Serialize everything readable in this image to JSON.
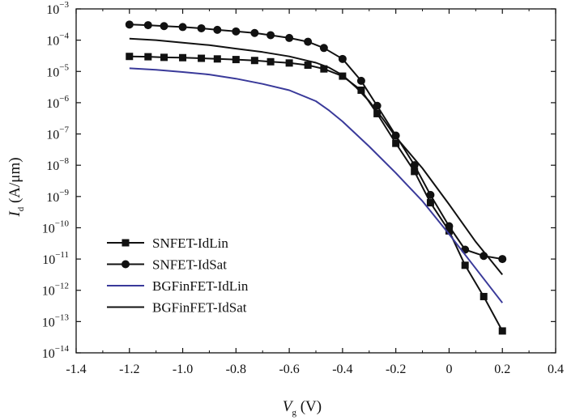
{
  "chart_data": {
    "type": "line",
    "title": "",
    "xlabel": {
      "main": "V",
      "sub": "g",
      "unit": " (V)"
    },
    "ylabel": {
      "main": "I",
      "sub": "d",
      "unit": " (A/μm)"
    },
    "xlim": [
      -1.4,
      0.4
    ],
    "ylim_log10": [
      -14,
      -3
    ],
    "yscale": "log",
    "x_ticks": [
      "-1.4",
      "-1.2",
      "-1.0",
      "-0.8",
      "-0.6",
      "-0.4",
      "-0.2",
      "0",
      "0.2",
      "0.4"
    ],
    "y_ticks": [
      {
        "base": "10",
        "exp": "-3"
      },
      {
        "base": "10",
        "exp": "-4"
      },
      {
        "base": "10",
        "exp": "-5"
      },
      {
        "base": "10",
        "exp": "-6"
      },
      {
        "base": "10",
        "exp": "-7"
      },
      {
        "base": "10",
        "exp": "-8"
      },
      {
        "base": "10",
        "exp": "-9"
      },
      {
        "base": "10",
        "exp": "-10"
      },
      {
        "base": "10",
        "exp": "-11"
      },
      {
        "base": "10",
        "exp": "-12"
      },
      {
        "base": "10",
        "exp": "-13"
      },
      {
        "base": "10",
        "exp": "-14"
      }
    ],
    "legend_position": "bottom-left",
    "grid": false,
    "series": [
      {
        "name": "SNFET-IdLin",
        "color": "#111111",
        "marker": "square",
        "x": [
          -1.2,
          -1.13,
          -1.07,
          -1.0,
          -0.93,
          -0.87,
          -0.8,
          -0.73,
          -0.67,
          -0.6,
          -0.53,
          -0.47,
          -0.4,
          -0.33,
          -0.27,
          -0.2,
          -0.13,
          -0.07,
          0.0,
          0.06,
          0.13,
          0.2
        ],
        "y_log10": [
          -4.52,
          -4.53,
          -4.55,
          -4.56,
          -4.58,
          -4.6,
          -4.62,
          -4.65,
          -4.69,
          -4.73,
          -4.8,
          -4.92,
          -5.15,
          -5.6,
          -6.35,
          -7.3,
          -8.2,
          -9.2,
          -10.1,
          -11.2,
          -12.2,
          -13.3
        ]
      },
      {
        "name": "SNFET-IdSat",
        "color": "#111111",
        "marker": "circle",
        "x": [
          -1.2,
          -1.13,
          -1.07,
          -1.0,
          -0.93,
          -0.87,
          -0.8,
          -0.73,
          -0.67,
          -0.6,
          -0.53,
          -0.47,
          -0.4,
          -0.33,
          -0.27,
          -0.2,
          -0.13,
          -0.07,
          0.0,
          0.06,
          0.13,
          0.2
        ],
        "y_log10": [
          -3.5,
          -3.52,
          -3.55,
          -3.58,
          -3.62,
          -3.67,
          -3.72,
          -3.77,
          -3.84,
          -3.93,
          -4.05,
          -4.25,
          -4.6,
          -5.3,
          -6.1,
          -7.05,
          -8.0,
          -8.95,
          -9.95,
          -10.7,
          -10.9,
          -11.0
        ]
      },
      {
        "name": "BGFinFET-IdLin",
        "color": "#3a3a9a",
        "marker": "none",
        "x": [
          -1.2,
          -1.1,
          -1.0,
          -0.9,
          -0.8,
          -0.7,
          -0.6,
          -0.5,
          -0.45,
          -0.4,
          -0.35,
          -0.3,
          -0.2,
          -0.1,
          0.0,
          0.1,
          0.2
        ],
        "y_log10": [
          -4.9,
          -4.95,
          -5.02,
          -5.1,
          -5.23,
          -5.4,
          -5.6,
          -5.95,
          -6.25,
          -6.6,
          -7.0,
          -7.4,
          -8.25,
          -9.15,
          -10.2,
          -11.3,
          -12.4
        ]
      },
      {
        "name": "BGFinFET-IdSat",
        "color": "#111111",
        "marker": "none",
        "x": [
          -1.2,
          -1.1,
          -1.0,
          -0.9,
          -0.8,
          -0.7,
          -0.6,
          -0.5,
          -0.45,
          -0.4,
          -0.35,
          -0.3,
          -0.25,
          -0.2,
          -0.1,
          0.0,
          0.1,
          0.2
        ],
        "y_log10": [
          -3.95,
          -4.0,
          -4.08,
          -4.16,
          -4.27,
          -4.38,
          -4.52,
          -4.72,
          -4.88,
          -5.12,
          -5.5,
          -5.95,
          -6.5,
          -7.1,
          -8.1,
          -9.25,
          -10.45,
          -11.5
        ]
      }
    ]
  }
}
